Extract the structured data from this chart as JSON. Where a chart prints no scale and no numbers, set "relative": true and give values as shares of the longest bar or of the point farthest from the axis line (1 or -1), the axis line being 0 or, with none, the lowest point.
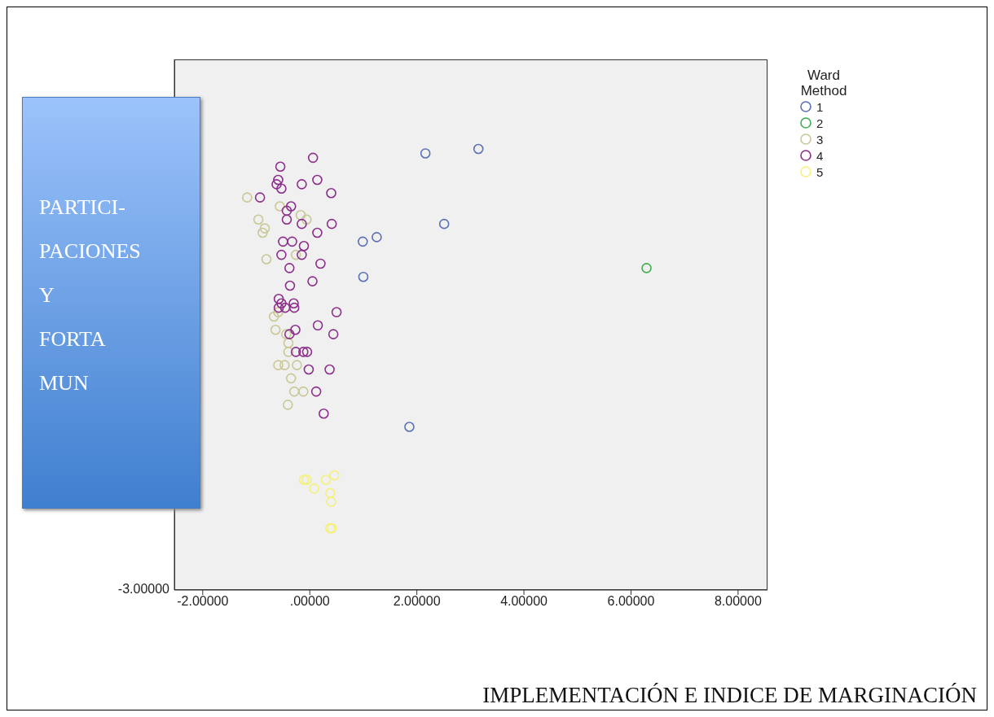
{
  "chart_data": {
    "type": "scatter",
    "xlabel": "IMPLEMENTACIÓN E INDICE DE MARGINACIÓN",
    "ylabel": "PARTICI-\nPACIONES\nY\nFORTA\nMUN",
    "legend_title": "Ward Method",
    "legend": "right",
    "marker": "circle",
    "relative": true,
    "xlim": [
      -2.53,
      8.55
    ],
    "xticks": [
      {
        "value": -2,
        "label": "-2.00000"
      },
      {
        "value": 0,
        "label": ".00000"
      },
      {
        "value": 2,
        "label": "2.00000"
      },
      {
        "value": 4,
        "label": "4.00000"
      },
      {
        "value": 6,
        "label": "6.00000"
      },
      {
        "value": 8,
        "label": "8.00000"
      }
    ],
    "annotations": [
      "-3.00000"
    ],
    "series": [
      {
        "name": "1",
        "color": "#5b6fb5",
        "x": [
          2.16,
          3.15,
          2.51,
          1.25,
          0.99,
          1.0,
          1.86
        ],
        "values": [
          0.99,
          1,
          0.83,
          0.8,
          0.79,
          0.71,
          0.37
        ]
      },
      {
        "name": "2",
        "color": "#3cae4e",
        "x": [
          6.29
        ],
        "values": [
          0.73
        ]
      },
      {
        "name": "3",
        "color": "#c9c795",
        "x": [
          -1.17,
          -0.56,
          -0.96,
          -0.84,
          -0.88,
          -0.81,
          -0.06,
          -0.17,
          -0.26,
          -0.67,
          -0.59,
          -0.64,
          -0.44,
          -0.4,
          -0.4,
          -0.47,
          -0.59,
          -0.24,
          -0.35,
          -0.12,
          -0.29,
          -0.41
        ],
        "values": [
          0.89,
          0.87,
          0.84,
          0.82,
          0.81,
          0.75,
          0.84,
          0.85,
          0.76,
          0.62,
          0.63,
          0.59,
          0.58,
          0.56,
          0.54,
          0.51,
          0.51,
          0.51,
          0.48,
          0.45,
          0.45,
          0.42
        ]
      },
      {
        "name": "4",
        "color": "#8b2f8b",
        "x": [
          0.06,
          -0.55,
          -0.59,
          0.14,
          -0.15,
          -0.62,
          -0.53,
          0.4,
          -0.93,
          -0.35,
          -0.43,
          -0.43,
          -0.15,
          0.41,
          0.14,
          -0.5,
          -0.33,
          -0.11,
          -0.53,
          -0.15,
          0.2,
          -0.38,
          0.05,
          -0.37,
          -0.58,
          -0.53,
          -0.3,
          -0.46,
          -0.29,
          -0.58,
          0.5,
          0.15,
          -0.27,
          -0.38,
          0.44,
          -0.05,
          -0.26,
          -0.12,
          -0.02,
          0.37,
          0.12,
          0.26
        ],
        "values": [
          0.98,
          0.96,
          0.93,
          0.93,
          0.92,
          0.92,
          0.91,
          0.9,
          0.89,
          0.87,
          0.86,
          0.84,
          0.83,
          0.83,
          0.81,
          0.79,
          0.79,
          0.78,
          0.76,
          0.76,
          0.74,
          0.73,
          0.7,
          0.69,
          0.66,
          0.65,
          0.65,
          0.64,
          0.64,
          0.64,
          0.63,
          0.6,
          0.59,
          0.58,
          0.58,
          0.54,
          0.54,
          0.54,
          0.5,
          0.5,
          0.45,
          0.4
        ]
      },
      {
        "name": "5",
        "color": "#f5f07a",
        "x": [
          -0.06,
          -0.11,
          0.46,
          0.3,
          0.08,
          0.38,
          0.4,
          0.38,
          0.41
        ],
        "values": [
          0.25,
          0.25,
          0.26,
          0.25,
          0.23,
          0.22,
          0.2,
          0.14,
          0.14
        ]
      }
    ]
  }
}
